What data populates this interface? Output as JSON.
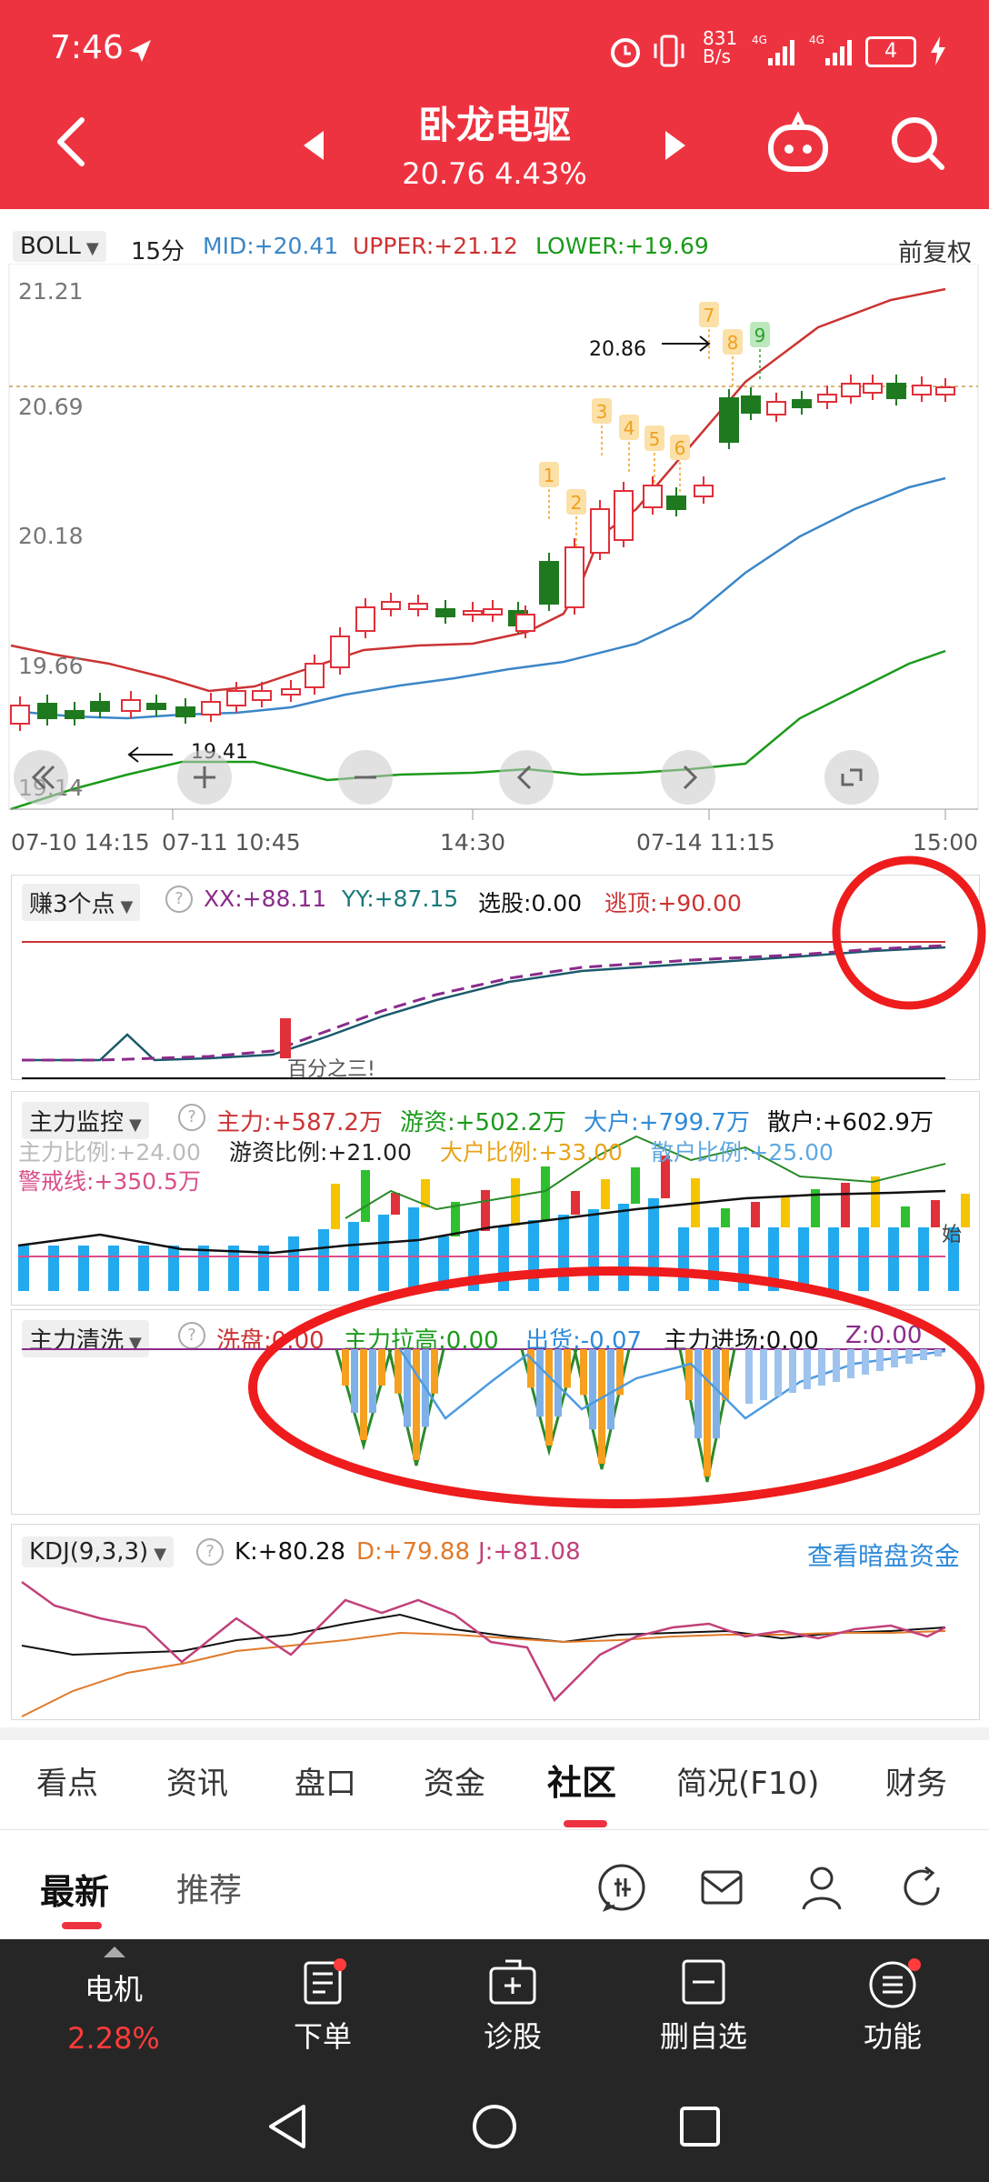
{
  "status_bar": {
    "time": "7:46",
    "net_speed_top": "831",
    "net_speed_bottom": "B/s",
    "battery": "4"
  },
  "header": {
    "title": "卧龙电驱",
    "price_change": "20.76 4.43%"
  },
  "boll": {
    "indicator": "BOLL",
    "period": "15分",
    "mid": "MID:+20.41",
    "upper": "UPPER:+21.12",
    "lower": "LOWER:+19.69",
    "adjust": "前复权",
    "y_ticks": [
      "21.21",
      "20.69",
      "20.18",
      "19.66",
      "19.14"
    ],
    "x_ticks": [
      "07-10 14:15",
      "07-11 10:45",
      "14:30",
      "07-14 11:15",
      "15:00"
    ],
    "high_label": "20.86",
    "low_label": "19.41",
    "seq_labels": [
      "1",
      "2",
      "3",
      "4",
      "5",
      "6",
      "7",
      "8",
      "9"
    ]
  },
  "zhuan": {
    "name": "赚3个点",
    "xx": "XX:+88.11",
    "yy": "YY:+87.15",
    "xuangu": "选股:0.00",
    "taoding": "逃顶:+90.00",
    "annotation": "百分之三!"
  },
  "zljk": {
    "name": "主力监控",
    "zhuli": "主力:+587.2万",
    "youzi": "游资:+502.2万",
    "dahu": "大户:+799.7万",
    "sanhu": "散户:+602.9万",
    "zhuli_ratio": "主力比例:+24.00",
    "youzi_ratio": "游资比例:+21.00",
    "dahu_ratio": "大户比例:+33.00",
    "sanhu_ratio": "散户比例:+25.00",
    "jingjie": "警戒线:+350.5万",
    "mark_shi": "始"
  },
  "zlqx": {
    "name": "主力清洗",
    "xipan": "洗盘:0.00",
    "lagao": "主力拉高:0.00",
    "chuhuo": "出货:-0.07",
    "jinchang": "主力进场:0.00",
    "z": "Z:0.00"
  },
  "kdj": {
    "name": "KDJ(9,3,3)",
    "k": "K:+80.28",
    "d": "D:+79.88",
    "j": "J:+81.08",
    "link": "查看暗盘资金"
  },
  "tabs": [
    "看点",
    "资讯",
    "盘口",
    "资金",
    "社区",
    "简况(F10)",
    "财务"
  ],
  "active_tab": "社区",
  "subtabs": [
    "最新",
    "推荐"
  ],
  "bottom": {
    "stock_name": "电机",
    "stock_change": "2.28%",
    "items": [
      "下单",
      "诊股",
      "删自选",
      "功能"
    ]
  },
  "colors": {
    "brand": "#ee3340",
    "mid": "#3b86c8",
    "upper": "#c33",
    "lower": "#1b9a1b",
    "up": "#e0303a",
    "down": "#1f7a1f"
  }
}
